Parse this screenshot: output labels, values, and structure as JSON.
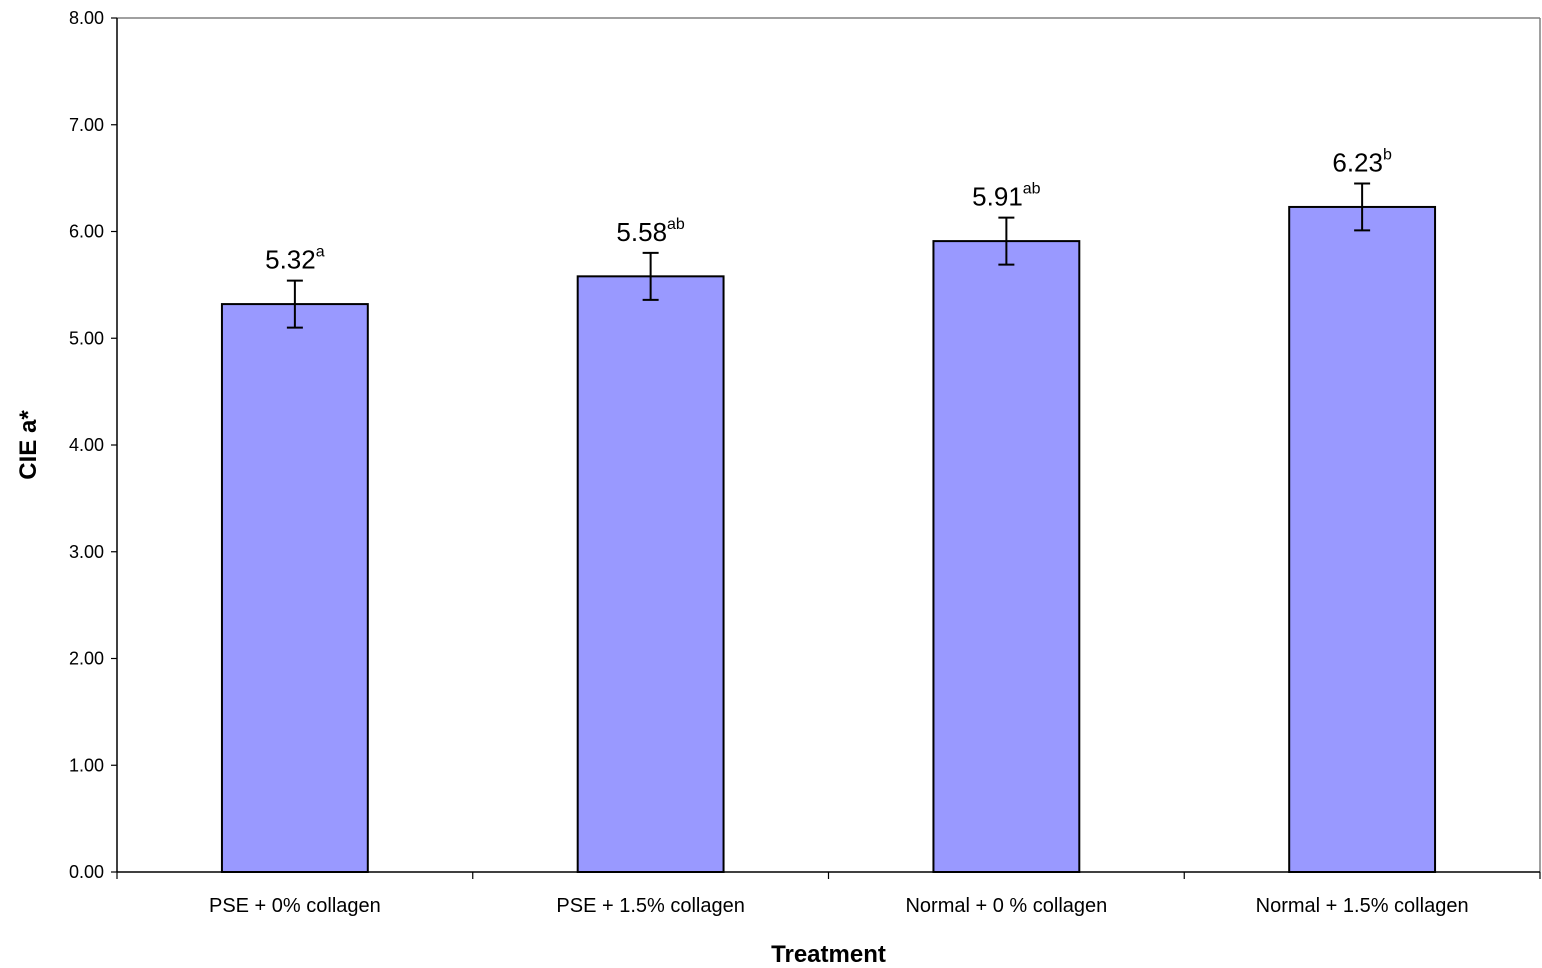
{
  "chart_data": {
    "type": "bar",
    "title": "",
    "xlabel": "Treatment",
    "ylabel": "CIE a*",
    "ylim": [
      0,
      8
    ],
    "ytick_step": 1,
    "ytick_labels": [
      "0.00",
      "1.00",
      "2.00",
      "3.00",
      "4.00",
      "5.00",
      "6.00",
      "7.00",
      "8.00"
    ],
    "grid": false,
    "legend": "none",
    "bar_color": "#9999ff",
    "bar_edge_color": "#000000",
    "categories": [
      "PSE + 0% collagen",
      "PSE + 1.5% collagen",
      "Normal + 0 % collagen",
      "Normal + 1.5% collagen"
    ],
    "values": [
      5.32,
      5.58,
      5.91,
      6.23
    ],
    "errors": [
      0.22,
      0.22,
      0.22,
      0.22
    ],
    "data_labels": [
      {
        "value": "5.32",
        "sup": "a"
      },
      {
        "value": "5.58",
        "sup": "ab"
      },
      {
        "value": "5.91",
        "sup": "ab"
      },
      {
        "value": "6.23",
        "sup": "b"
      }
    ]
  }
}
